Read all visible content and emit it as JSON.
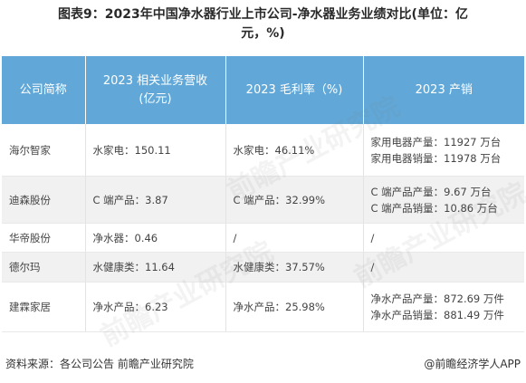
{
  "title": {
    "line1": "图表9：2023年中国净水器行业上市公司-净水器业务业绩对比(单位：亿",
    "line2": "元，%)"
  },
  "table": {
    "headers": {
      "company": "公司简称",
      "revenue_line1": "2023 相关业务营收",
      "revenue_line2": "(亿元)",
      "margin": "2023 毛利率（%)",
      "production": "2023 产销"
    },
    "rows": [
      {
        "company": "海尔智家",
        "revenue": "水家电：150.11",
        "margin": "水家电：46.11%",
        "prod_line1": "家用电器产量：11927 万台",
        "prod_line2": "家用电器销量：11978 万台"
      },
      {
        "company": "迪森股份",
        "revenue": "C 端产品：3.87",
        "margin": "C 端产品：32.99%",
        "prod_line1": "C 端产品产量：9.67 万台",
        "prod_line2": "C 端产品销量：10.86 万台"
      },
      {
        "company": "华帝股份",
        "revenue": "净水器：0.46",
        "margin": "/",
        "prod_line1": "/",
        "prod_line2": ""
      },
      {
        "company": "德尔玛",
        "revenue": "水健康类：11.64",
        "margin": "水健康类：37.57%",
        "prod_line1": "/",
        "prod_line2": ""
      },
      {
        "company": "建霖家居",
        "revenue": "净水产品：6.23",
        "margin": "净水产品：25.98%",
        "prod_line1": "净水产品产量：872.69 万件",
        "prod_line2": "净水产品销量：881.49 万件"
      }
    ]
  },
  "watermark": {
    "text": "前瞻产业研究院"
  },
  "footer": {
    "source": "资料来源：各公司公告 前瞻产业研究院",
    "brand": "@前瞻经济学人APP"
  }
}
